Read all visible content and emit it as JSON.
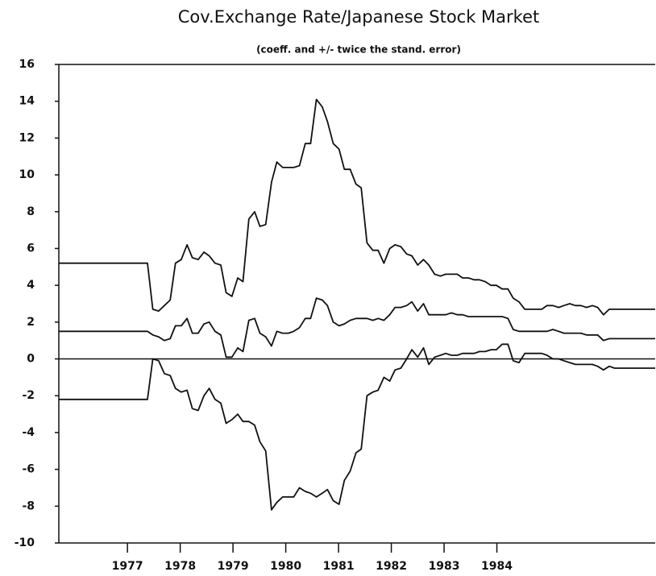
{
  "chart_data": {
    "type": "line",
    "title": "Cov.Exchange Rate/Japanese Stock Market",
    "subtitle": "(coeff. and +/- twice the stand. error)",
    "x": [
      1975.7,
      1977.38,
      1977.48,
      1977.59,
      1977.7,
      1977.81,
      1977.91,
      1978.02,
      1978.13,
      1978.23,
      1978.34,
      1978.45,
      1978.55,
      1978.66,
      1978.77,
      1978.87,
      1978.98,
      1979.09,
      1979.19,
      1979.3,
      1979.41,
      1979.51,
      1979.62,
      1979.73,
      1979.83,
      1979.94,
      1980.05,
      1980.15,
      1980.26,
      1980.37,
      1980.47,
      1980.58,
      1980.69,
      1980.79,
      1980.9,
      1981.01,
      1981.11,
      1981.22,
      1981.33,
      1981.43,
      1981.54,
      1981.65,
      1981.75,
      1981.86,
      1981.97,
      1982.07,
      1982.18,
      1982.29,
      1982.39,
      1982.5,
      1982.61,
      1982.71,
      1982.82,
      1982.93,
      1983.03,
      1983.14,
      1983.25,
      1983.35,
      1983.46,
      1983.57,
      1983.67,
      1983.78,
      1983.89,
      1983.99,
      1984.1,
      1984.21,
      1984.31,
      1984.42,
      1984.53,
      1984.63,
      1984.74,
      1984.85,
      1984.95,
      1985.06,
      1985.17,
      1985.27,
      1985.38,
      1985.49,
      1985.59,
      1985.7,
      1985.81,
      1985.91,
      1986.02,
      1986.13,
      1986.23,
      1986.34,
      1986.45,
      1986.55,
      1987.0
    ],
    "series": [
      {
        "color": "#111111",
        "values": [
          5.2,
          5.2,
          2.7,
          2.6,
          2.9,
          3.2,
          5.2,
          5.4,
          6.2,
          5.5,
          5.4,
          5.8,
          5.6,
          5.2,
          5.1,
          3.6,
          3.4,
          4.4,
          4.2,
          7.6,
          8.0,
          7.2,
          7.3,
          9.6,
          10.7,
          10.4,
          10.4,
          10.4,
          10.5,
          11.7,
          11.7,
          14.1,
          13.7,
          12.9,
          11.7,
          11.4,
          10.3,
          10.3,
          9.5,
          9.3,
          6.3,
          5.9,
          5.9,
          5.2,
          6.0,
          6.2,
          6.1,
          5.7,
          5.6,
          5.1,
          5.4,
          5.1,
          4.6,
          4.5,
          4.6,
          4.6,
          4.6,
          4.4,
          4.4,
          4.3,
          4.3,
          4.2,
          4.0,
          4.0,
          3.8,
          3.8,
          3.3,
          3.1,
          2.7,
          2.7,
          2.7,
          2.7,
          2.9,
          2.9,
          2.8,
          2.9,
          3.0,
          2.9,
          2.9,
          2.8,
          2.9,
          2.8,
          2.4,
          2.7,
          2.7,
          2.7,
          2.7,
          2.7,
          2.7
        ]
      },
      {
        "color": "#111111",
        "values": [
          1.5,
          1.5,
          1.3,
          1.2,
          1.0,
          1.1,
          1.8,
          1.8,
          2.2,
          1.4,
          1.4,
          1.9,
          2.0,
          1.5,
          1.3,
          0.1,
          0.1,
          0.6,
          0.4,
          2.1,
          2.2,
          1.4,
          1.2,
          0.7,
          1.5,
          1.4,
          1.4,
          1.5,
          1.7,
          2.2,
          2.2,
          3.3,
          3.2,
          2.9,
          2.0,
          1.8,
          1.9,
          2.1,
          2.2,
          2.2,
          2.2,
          2.1,
          2.2,
          2.1,
          2.4,
          2.8,
          2.8,
          2.9,
          3.1,
          2.6,
          3.0,
          2.4,
          2.4,
          2.4,
          2.4,
          2.5,
          2.4,
          2.4,
          2.3,
          2.3,
          2.3,
          2.3,
          2.3,
          2.3,
          2.3,
          2.2,
          1.6,
          1.5,
          1.5,
          1.5,
          1.5,
          1.5,
          1.5,
          1.6,
          1.5,
          1.4,
          1.4,
          1.4,
          1.4,
          1.3,
          1.3,
          1.3,
          1.0,
          1.1,
          1.1,
          1.1,
          1.1,
          1.1,
          1.1
        ]
      },
      {
        "color": "#111111",
        "values": [
          -2.2,
          -2.2,
          0.0,
          -0.1,
          -0.8,
          -0.9,
          -1.6,
          -1.8,
          -1.7,
          -2.7,
          -2.8,
          -2.0,
          -1.6,
          -2.2,
          -2.4,
          -3.5,
          -3.3,
          -3.0,
          -3.4,
          -3.4,
          -3.6,
          -4.5,
          -5.0,
          -8.2,
          -7.8,
          -7.5,
          -7.5,
          -7.5,
          -7.0,
          -7.2,
          -7.3,
          -7.5,
          -7.3,
          -7.1,
          -7.7,
          -7.9,
          -6.6,
          -6.1,
          -5.1,
          -4.9,
          -2.0,
          -1.8,
          -1.7,
          -1.0,
          -1.2,
          -0.6,
          -0.5,
          0.0,
          0.5,
          0.1,
          0.6,
          -0.3,
          0.1,
          0.2,
          0.3,
          0.2,
          0.2,
          0.3,
          0.3,
          0.3,
          0.4,
          0.4,
          0.5,
          0.5,
          0.8,
          0.8,
          -0.1,
          -0.2,
          0.3,
          0.3,
          0.3,
          0.3,
          0.2,
          0.0,
          0.0,
          -0.1,
          -0.2,
          -0.3,
          -0.3,
          -0.3,
          -0.3,
          -0.4,
          -0.6,
          -0.4,
          -0.5,
          -0.5,
          -0.5,
          -0.5,
          -0.5
        ]
      }
    ],
    "hline": 0,
    "xlim": [
      1975.7,
      1987.0
    ],
    "xticks": [
      1977,
      1978,
      1979,
      1980,
      1981,
      1982,
      1983,
      1984
    ],
    "ylim": [
      -10,
      16
    ],
    "yticks": [
      -10,
      -8,
      -6,
      -4,
      -2,
      0,
      2,
      4,
      6,
      8,
      10,
      12,
      14,
      16
    ],
    "grid": false
  }
}
